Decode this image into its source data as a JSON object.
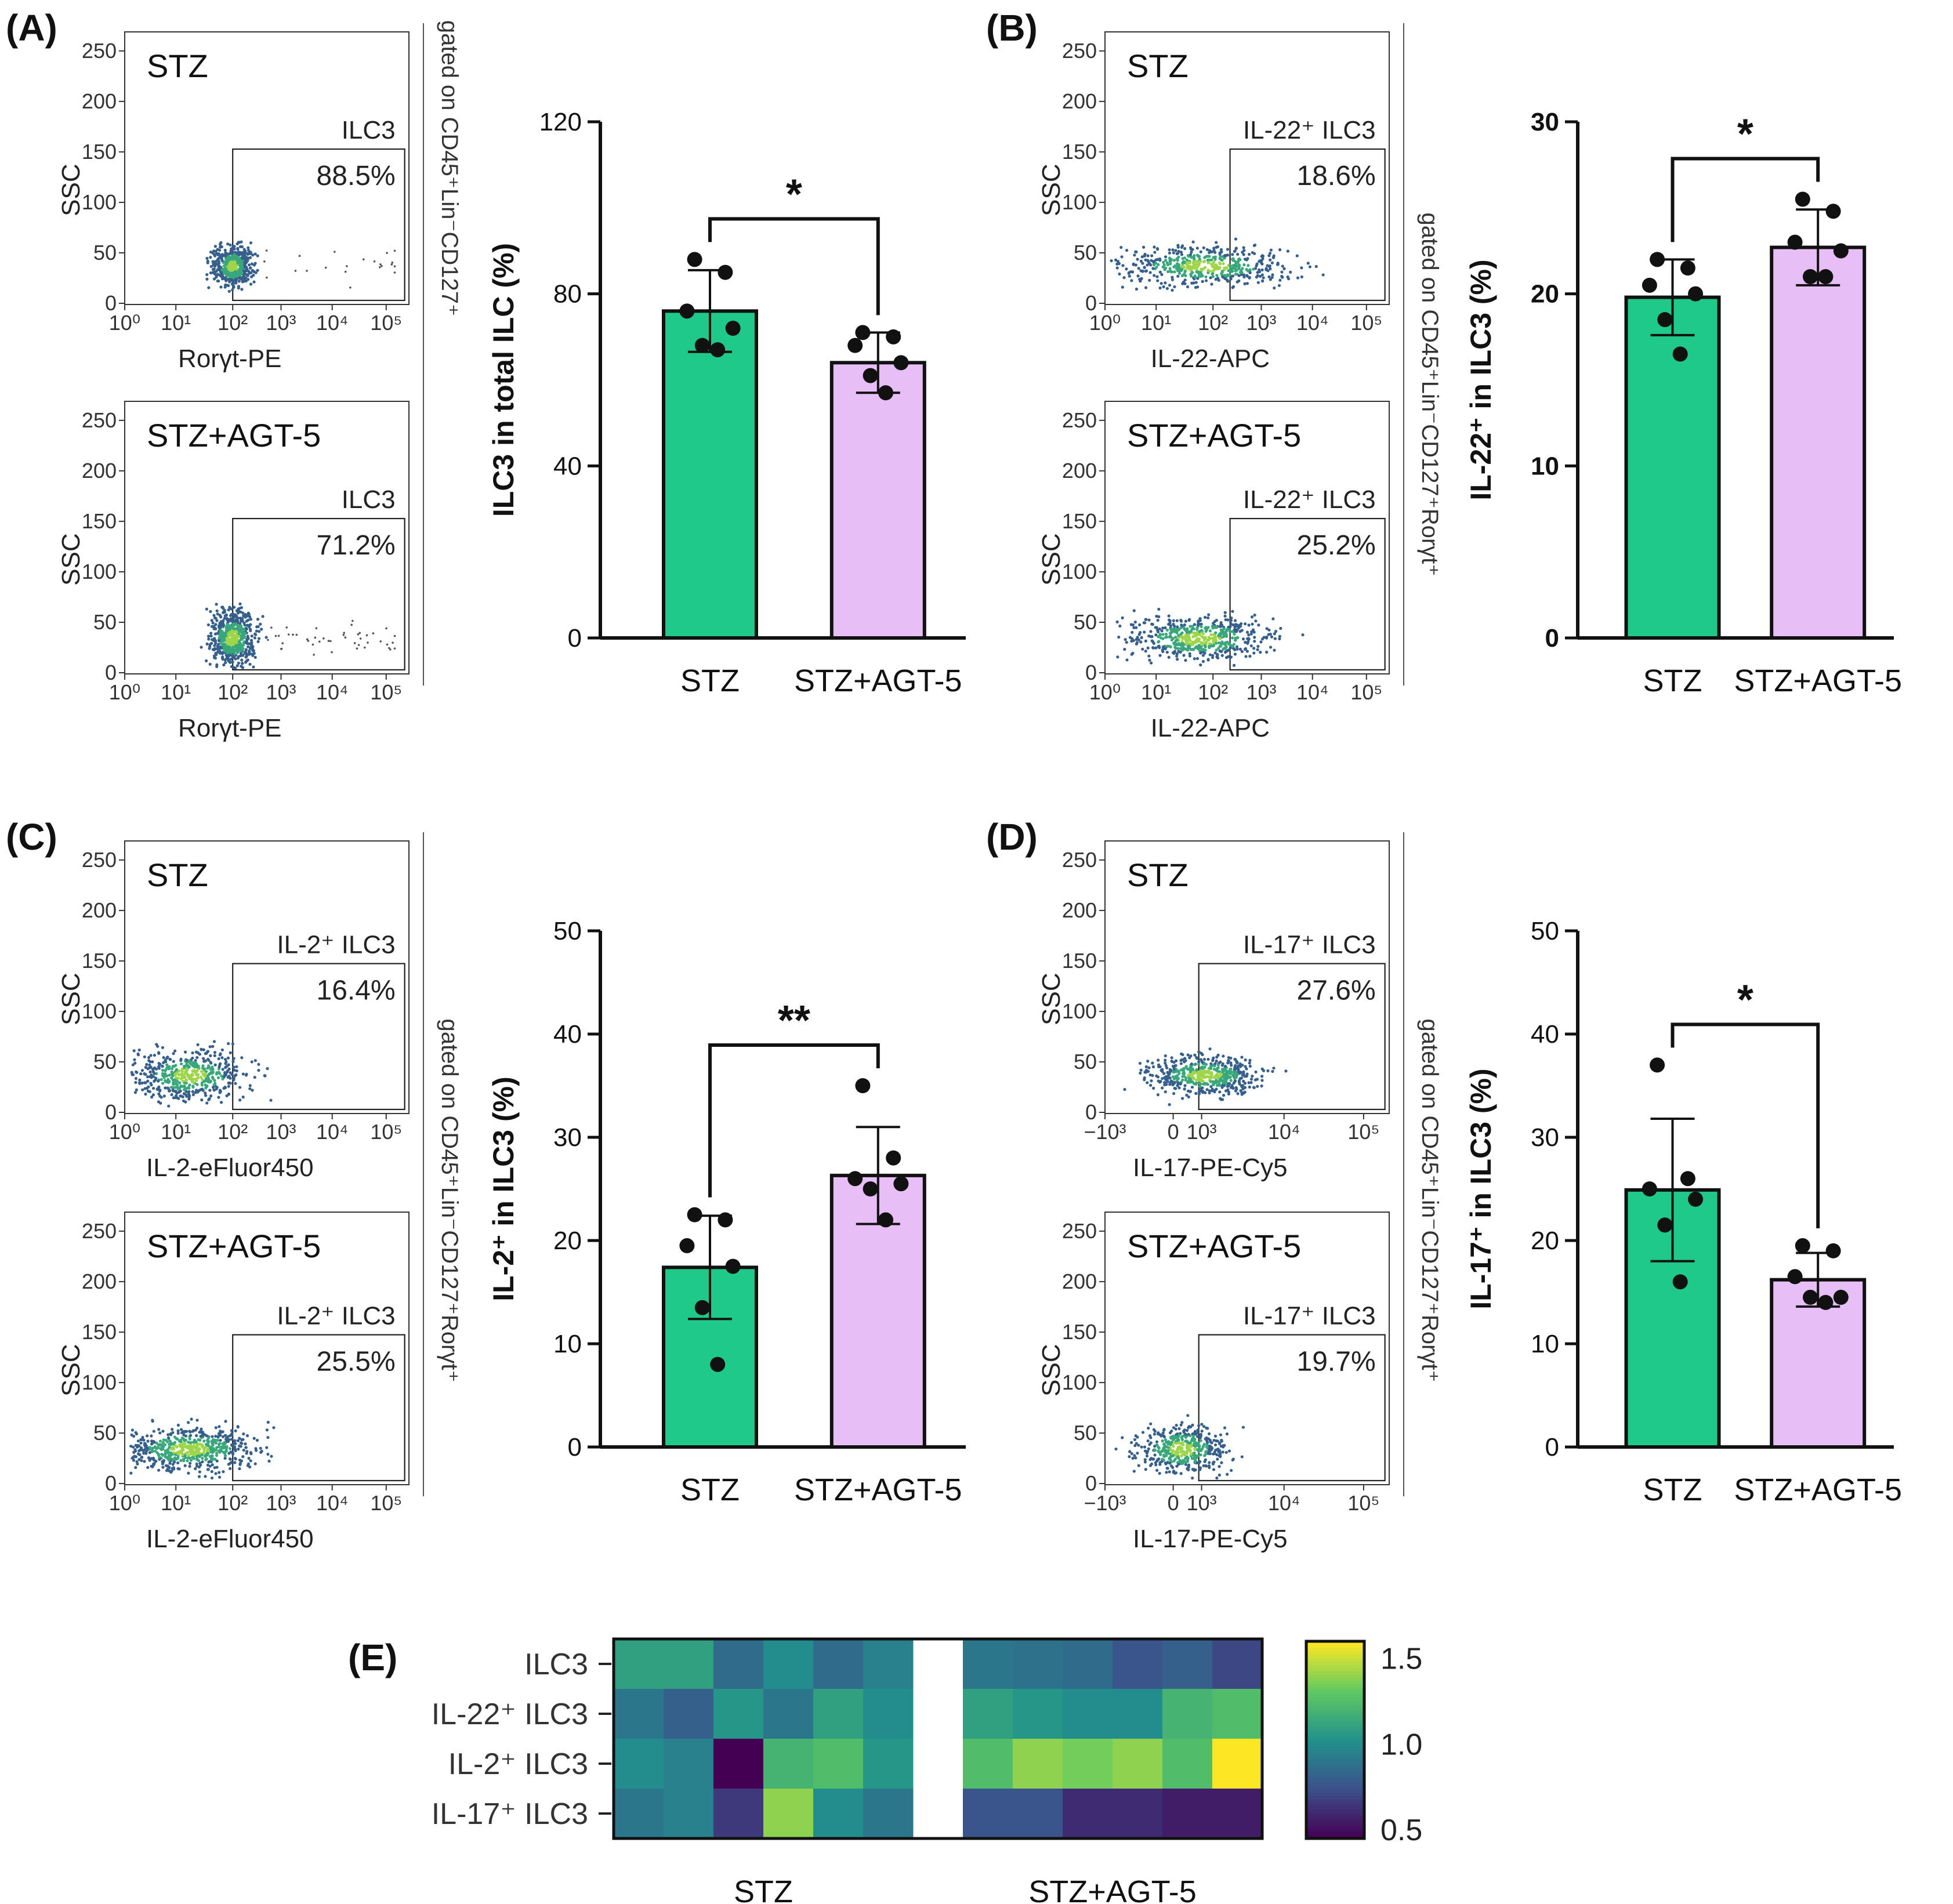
{
  "chart_data": [
    {
      "id": "A",
      "label": "(A)",
      "type": "flow-cytometry",
      "gated_on": "gated on CD45⁺Lin⁻CD127⁺",
      "plots": [
        {
          "title": "STZ",
          "x_label": "Rorγt-PE",
          "y_label": "SSC",
          "gate_name": "ILC3",
          "gate_percent": "88.5%"
        },
        {
          "title": "STZ+AGT-5",
          "x_label": "Rorγt-PE",
          "y_label": "SSC",
          "gate_name": "ILC3",
          "gate_percent": "71.2%"
        }
      ],
      "bar": {
        "type": "bar",
        "ylabel": "ILC3 in total ILC (%)",
        "ylim": [
          0,
          120
        ],
        "yticks": [
          "0",
          "40",
          "80",
          "120"
        ],
        "categories": [
          "STZ",
          "STZ+AGT-5"
        ],
        "values": [
          76,
          64
        ],
        "sd": [
          9.5,
          7
        ],
        "points": [
          [
            88,
            85,
            76,
            72,
            68,
            67
          ],
          [
            71,
            70,
            68,
            64,
            61,
            57
          ]
        ],
        "significance": "*",
        "colors": [
          "#1ec98a",
          "#e8bef6"
        ]
      }
    },
    {
      "id": "B",
      "label": "(B)",
      "type": "flow-cytometry",
      "gated_on": "gated on CD45⁺Lin⁻CD127⁺Rorγt⁺",
      "plots": [
        {
          "title": "STZ",
          "x_label": "IL-22-APC",
          "y_label": "SSC",
          "gate_name": "IL-22⁺ ILC3",
          "gate_percent": "18.6%"
        },
        {
          "title": "STZ+AGT-5",
          "x_label": "IL-22-APC",
          "y_label": "SSC",
          "gate_name": "IL-22⁺ ILC3",
          "gate_percent": "25.2%"
        }
      ],
      "bar": {
        "type": "bar",
        "ylabel": "IL-22⁺ in ILC3 (%)",
        "ylim": [
          0,
          30
        ],
        "yticks": [
          "0",
          "10",
          "20",
          "30"
        ],
        "categories": [
          "STZ",
          "STZ+AGT-5"
        ],
        "values": [
          19.8,
          22.7
        ],
        "sd": [
          2.2,
          2.2
        ],
        "points": [
          [
            22,
            21.5,
            20.5,
            20,
            18.5,
            16.5
          ],
          [
            25.5,
            24.8,
            23,
            22.5,
            21,
            21
          ]
        ],
        "significance": "*",
        "colors": [
          "#1ec98a",
          "#e8bef6"
        ]
      }
    },
    {
      "id": "C",
      "label": "(C)",
      "type": "flow-cytometry",
      "gated_on": "gated on CD45⁺Lin⁻CD127⁺Rorγt⁺",
      "plots": [
        {
          "title": "STZ",
          "x_label": "IL-2-eFluor450",
          "y_label": "SSC",
          "gate_name": "IL-2⁺ ILC3",
          "gate_percent": "16.4%"
        },
        {
          "title": "STZ+AGT-5",
          "x_label": "IL-2-eFluor450",
          "y_label": "SSC",
          "gate_name": "IL-2⁺ ILC3",
          "gate_percent": "25.5%"
        }
      ],
      "bar": {
        "type": "bar",
        "ylabel": "IL-2⁺ in ILC3 (%)",
        "ylim": [
          0,
          50
        ],
        "yticks": [
          "0",
          "10",
          "20",
          "30",
          "40",
          "50"
        ],
        "categories": [
          "STZ",
          "STZ+AGT-5"
        ],
        "values": [
          17.4,
          26.3
        ],
        "sd": [
          5,
          4.7
        ],
        "points": [
          [
            22.5,
            22,
            19.5,
            17.5,
            13.5,
            8
          ],
          [
            35,
            28,
            26,
            25.5,
            25,
            22
          ]
        ],
        "significance": "**",
        "colors": [
          "#1ec98a",
          "#e8bef6"
        ]
      }
    },
    {
      "id": "D",
      "label": "(D)",
      "type": "flow-cytometry",
      "gated_on": "gated on CD45⁺Lin⁻CD127⁺Rorγt⁺",
      "plots": [
        {
          "title": "STZ",
          "x_label": "IL-17-PE-Cy5",
          "y_label": "SSC",
          "gate_name": "IL-17⁺ ILC3",
          "gate_percent": "27.6%"
        },
        {
          "title": "STZ+AGT-5",
          "x_label": "IL-17-PE-Cy5",
          "y_label": "SSC",
          "gate_name": "IL-17⁺ ILC3",
          "gate_percent": "19.7%"
        }
      ],
      "bar": {
        "type": "bar",
        "ylabel": "IL-17⁺ in ILC3 (%)",
        "ylim": [
          0,
          50
        ],
        "yticks": [
          "0",
          "10",
          "20",
          "30",
          "40",
          "50"
        ],
        "categories": [
          "STZ",
          "STZ+AGT-5"
        ],
        "values": [
          24.9,
          16.2
        ],
        "sd": [
          6.9,
          2.6
        ],
        "points": [
          [
            37,
            26,
            25,
            24,
            21.5,
            16
          ],
          [
            19.5,
            19,
            16.5,
            14.5,
            14.5,
            14
          ]
        ],
        "significance": "*",
        "colors": [
          "#1ec98a",
          "#e8bef6"
        ]
      }
    },
    {
      "id": "E",
      "label": "(E)",
      "type": "heatmap",
      "rows": [
        "ILC3",
        "IL-22⁺ ILC3",
        "IL-2⁺ ILC3",
        "IL-17⁺ ILC3"
      ],
      "groups": [
        "STZ",
        "STZ+AGT-5"
      ],
      "colorbar_ticks": [
        "0.5",
        "1.0",
        "1.5"
      ],
      "colorbar_range": [
        0.45,
        1.6
      ],
      "values": [
        [
          1.1,
          1.1,
          0.85,
          1.0,
          0.85,
          0.95,
          0.9,
          0.88,
          0.85,
          0.75,
          0.8,
          0.7
        ],
        [
          0.9,
          0.8,
          1.05,
          0.9,
          1.1,
          1.0,
          1.1,
          1.05,
          1.0,
          1.0,
          1.2,
          1.25
        ],
        [
          1.0,
          0.95,
          0.45,
          1.2,
          1.25,
          1.05,
          1.25,
          1.4,
          1.35,
          1.4,
          1.25,
          1.6
        ],
        [
          0.9,
          0.95,
          0.65,
          1.4,
          1.0,
          0.9,
          0.75,
          0.75,
          0.6,
          0.6,
          0.55,
          0.55
        ]
      ]
    }
  ]
}
